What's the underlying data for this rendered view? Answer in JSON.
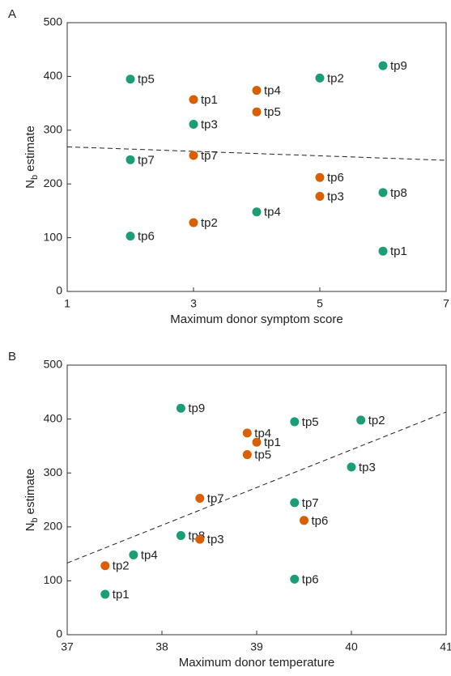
{
  "chart_data": [
    {
      "type": "scatter",
      "panel": "A",
      "xlabel": "Maximum donor symptom score",
      "ylabel": [
        "N",
        "b",
        "estimate"
      ],
      "xlim": [
        1,
        7
      ],
      "xticks": [
        1,
        3,
        5,
        7
      ],
      "ylim": [
        0,
        500
      ],
      "yticks": [
        0,
        100,
        200,
        300,
        400,
        500
      ],
      "series": [
        {
          "color": "#1b9e77",
          "x": [
            2,
            3,
            2,
            2,
            4,
            5,
            6,
            6,
            6
          ],
          "y": [
            395,
            311,
            245,
            103,
            148,
            397,
            420,
            184,
            75
          ],
          "labels": [
            "tp5",
            "tp3",
            "tp7",
            "tp6",
            "tp4",
            "tp2",
            "tp9",
            "tp8",
            "tp1"
          ]
        },
        {
          "color": "#d95f02",
          "x": [
            3,
            3,
            3,
            4,
            4,
            5,
            5
          ],
          "y": [
            357,
            253,
            128,
            374,
            334,
            212,
            177
          ],
          "labels": [
            "tp1",
            "tp7",
            "tp2",
            "tp4",
            "tp5",
            "tp6",
            "tp3"
          ]
        }
      ],
      "trendline": {
        "x": [
          1,
          7
        ],
        "y": [
          269,
          244
        ]
      }
    },
    {
      "type": "scatter",
      "panel": "B",
      "xlabel": "Maximum donor temperature",
      "ylabel": [
        "N",
        "b",
        "estimate"
      ],
      "xlim": [
        37,
        41
      ],
      "xticks": [
        37,
        38,
        39,
        40,
        41
      ],
      "ylim": [
        0,
        500
      ],
      "yticks": [
        0,
        100,
        200,
        300,
        400,
        500
      ],
      "series": [
        {
          "color": "#1b9e77",
          "x": [
            38.2,
            39.4,
            40.1,
            40.0,
            39.4,
            38.2,
            37.7,
            37.4,
            39.4
          ],
          "y": [
            420,
            395,
            398,
            311,
            245,
            184,
            148,
            75,
            103
          ],
          "labels": [
            "tp9",
            "tp5",
            "tp2",
            "tp3",
            "tp7",
            "tp8",
            "tp4",
            "tp1",
            "tp6"
          ]
        },
        {
          "color": "#d95f02",
          "x": [
            38.9,
            39.0,
            38.9,
            38.4,
            39.5,
            38.4,
            37.4
          ],
          "y": [
            374,
            357,
            334,
            253,
            212,
            177,
            128
          ],
          "labels": [
            "tp4",
            "tp1",
            "tp5",
            "tp7",
            "tp6",
            "tp3",
            "tp2"
          ]
        }
      ],
      "trendline": {
        "x": [
          37,
          41
        ],
        "y": [
          133,
          413
        ]
      }
    }
  ]
}
